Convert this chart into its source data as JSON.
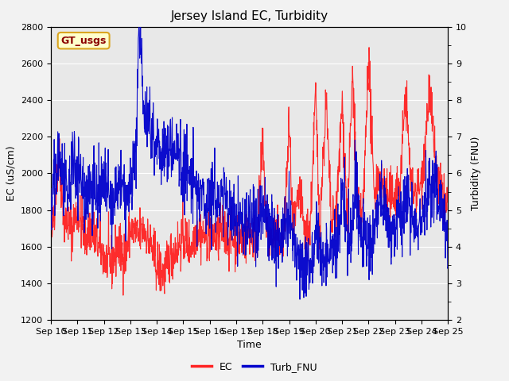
{
  "title": "Jersey Island EC, Turbidity",
  "xlabel": "Time",
  "ylabel_left": "EC (uS/cm)",
  "ylabel_right": "Turbidity (FNU)",
  "annotation": "GT_usgs",
  "annotation_color": "#8B0000",
  "annotation_bg": "#FFFFCC",
  "annotation_border": "#DAA520",
  "ec_color": "#FF2222",
  "turb_color": "#0000CC",
  "ec_linewidth": 0.8,
  "turb_linewidth": 0.8,
  "ylim_left": [
    1200,
    2800
  ],
  "ylim_right": [
    2.0,
    10.0
  ],
  "yticks_left": [
    1200,
    1400,
    1600,
    1800,
    2000,
    2200,
    2400,
    2600,
    2800
  ],
  "yticks_right": [
    2.0,
    3.0,
    4.0,
    5.0,
    6.0,
    7.0,
    8.0,
    9.0,
    10.0
  ],
  "xtick_labels": [
    "Sep 10",
    "Sep 11",
    "Sep 12",
    "Sep 13",
    "Sep 14",
    "Sep 15",
    "Sep 16",
    "Sep 17",
    "Sep 18",
    "Sep 19",
    "Sep 20",
    "Sep 21",
    "Sep 22",
    "Sep 23",
    "Sep 24",
    "Sep 25"
  ],
  "plot_bg_color": "#E8E8E8",
  "fig_bg_color": "#F2F2F2",
  "legend_ec": "EC",
  "legend_turb": "Turb_FNU",
  "grid_color": "#FFFFFF",
  "title_fontsize": 11,
  "label_fontsize": 9,
  "tick_fontsize": 8,
  "annotation_fontsize": 9
}
